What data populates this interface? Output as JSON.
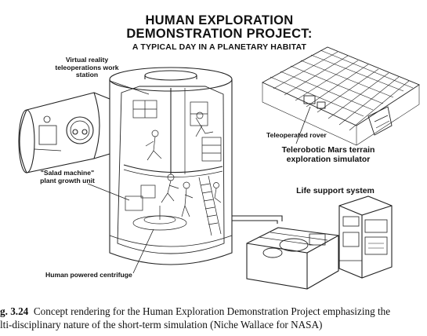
{
  "title": {
    "line1": "HUMAN EXPLORATION",
    "line2": "DEMONSTRATION PROJECT:",
    "line3": "A TYPICAL DAY IN A PLANETARY HABITAT"
  },
  "labels": {
    "vr": "Virtual reality teleoperations work station",
    "salad": "\"Salad machine\" plant growth unit",
    "rover": "Teleoperated rover",
    "mars": "Telerobotic Mars terrain exploration simulator",
    "life": "Life support system",
    "centrifuge": "Human powered centrifuge"
  },
  "caption": {
    "figure": "g. 3.24",
    "line1": "Concept rendering for the Human Exploration Demonstration Project emphasizing the",
    "line2": "lti-disciplinary nature of the short-term simulation (Niche Wallace for NASA)"
  }
}
